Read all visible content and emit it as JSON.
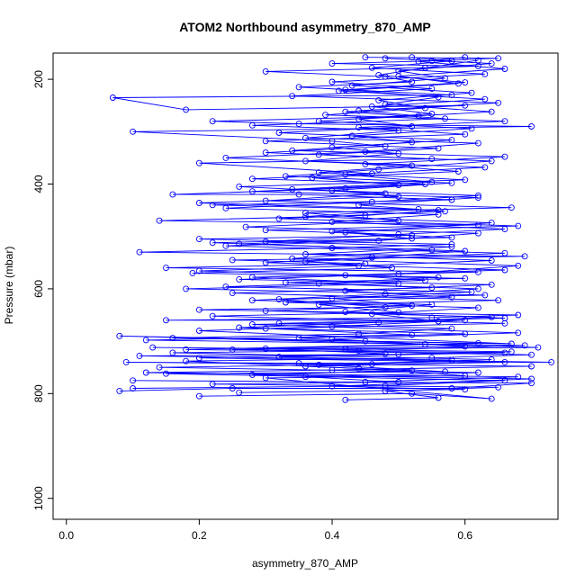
{
  "chart_data": {
    "type": "line",
    "title": "ATOM2 Northbound asymmetry_870_AMP",
    "xlabel": "asymmetry_870_AMP",
    "ylabel": "Pressure (mbar)",
    "xlim": [
      -0.02,
      0.74
    ],
    "ylim": [
      1040,
      150
    ],
    "y_reversed": true,
    "grid": false,
    "xticks": [
      0.0,
      0.2,
      0.4,
      0.6
    ],
    "xtick_labels": [
      "0.0",
      "0.2",
      "0.4",
      "0.6"
    ],
    "yticks": [
      200,
      400,
      600,
      800,
      1000
    ],
    "ytick_labels": [
      "200",
      "400",
      "600",
      "800",
      "1000"
    ],
    "marker": "open-circle",
    "series_color": "#0000ff",
    "series": [
      {
        "points": [
          [
            0.08,
            795
          ],
          [
            0.25,
            790
          ],
          [
            0.58,
            790
          ],
          [
            0.7,
            780
          ],
          [
            0.1,
            775
          ],
          [
            0.45,
            778
          ],
          [
            0.68,
            768
          ],
          [
            0.12,
            760
          ],
          [
            0.4,
            755
          ],
          [
            0.7,
            748
          ],
          [
            0.09,
            740
          ],
          [
            0.35,
            742
          ],
          [
            0.73,
            740
          ],
          [
            0.11,
            728
          ],
          [
            0.5,
            725
          ],
          [
            0.67,
            720
          ],
          [
            0.13,
            712
          ],
          [
            0.42,
            715
          ],
          [
            0.71,
            712
          ],
          [
            0.08,
            690
          ],
          [
            0.45,
            700
          ],
          [
            0.67,
            705
          ],
          [
            0.2,
            680
          ],
          [
            0.4,
            672
          ],
          [
            0.6,
            660
          ],
          [
            0.15,
            660
          ],
          [
            0.55,
            655
          ],
          [
            0.68,
            650
          ],
          [
            0.2,
            640
          ],
          [
            0.48,
            635
          ],
          [
            0.32,
            620
          ],
          [
            0.63,
            612
          ],
          [
            0.18,
            600
          ],
          [
            0.5,
            590
          ],
          [
            0.28,
            578
          ],
          [
            0.62,
            568
          ],
          [
            0.15,
            560
          ],
          [
            0.45,
            552
          ],
          [
            0.25,
            545
          ],
          [
            0.69,
            538
          ],
          [
            0.11,
            530
          ],
          [
            0.4,
            522
          ],
          [
            0.58,
            515
          ],
          [
            0.2,
            505
          ],
          [
            0.52,
            498
          ],
          [
            0.3,
            488
          ],
          [
            0.62,
            478
          ],
          [
            0.14,
            470
          ],
          [
            0.45,
            460
          ],
          [
            0.56,
            450
          ],
          [
            0.22,
            440
          ],
          [
            0.58,
            430
          ],
          [
            0.35,
            420
          ],
          [
            0.16,
            420
          ],
          [
            0.42,
            408
          ],
          [
            0.54,
            400
          ],
          [
            0.28,
            390
          ],
          [
            0.46,
            380
          ],
          [
            0.2,
            360
          ],
          [
            0.55,
            352
          ],
          [
            0.3,
            340
          ],
          [
            0.48,
            328
          ],
          [
            0.4,
            318
          ],
          [
            0.1,
            300
          ],
          [
            0.7,
            290
          ],
          [
            0.35,
            285
          ],
          [
            0.22,
            280
          ],
          [
            0.53,
            270
          ],
          [
            0.44,
            260
          ],
          [
            0.6,
            250
          ],
          [
            0.18,
            258
          ],
          [
            0.07,
            235
          ],
          [
            0.58,
            230
          ],
          [
            0.35,
            215
          ],
          [
            0.52,
            205
          ],
          [
            0.48,
            195
          ],
          [
            0.3,
            185
          ],
          [
            0.62,
            175
          ],
          [
            0.4,
            170
          ],
          [
            0.55,
            165
          ],
          [
            0.65,
            160
          ],
          [
            0.45,
            158
          ]
        ]
      },
      {
        "points": [
          [
            0.1,
            790
          ],
          [
            0.48,
            785
          ],
          [
            0.66,
            775
          ],
          [
            0.15,
            762
          ],
          [
            0.57,
            758
          ],
          [
            0.38,
            745
          ],
          [
            0.64,
            735
          ],
          [
            0.16,
            722
          ],
          [
            0.44,
            718
          ],
          [
            0.69,
            708
          ],
          [
            0.12,
            698
          ],
          [
            0.52,
            688
          ],
          [
            0.3,
            676
          ],
          [
            0.66,
            666
          ],
          [
            0.22,
            652
          ],
          [
            0.5,
            645
          ],
          [
            0.38,
            630
          ],
          [
            0.65,
            622
          ],
          [
            0.25,
            608
          ],
          [
            0.55,
            598
          ],
          [
            0.33,
            588
          ],
          [
            0.6,
            580
          ],
          [
            0.19,
            570
          ],
          [
            0.49,
            560
          ],
          [
            0.36,
            548
          ],
          [
            0.66,
            532
          ],
          [
            0.24,
            518
          ],
          [
            0.47,
            508
          ],
          [
            0.62,
            494
          ],
          [
            0.27,
            482
          ],
          [
            0.5,
            470
          ],
          [
            0.36,
            455
          ],
          [
            0.67,
            445
          ],
          [
            0.3,
            432
          ],
          [
            0.48,
            418
          ],
          [
            0.26,
            405
          ],
          [
            0.6,
            392
          ],
          [
            0.38,
            378
          ],
          [
            0.52,
            365
          ],
          [
            0.24,
            350
          ],
          [
            0.45,
            338
          ],
          [
            0.62,
            322
          ],
          [
            0.36,
            312
          ],
          [
            0.5,
            298
          ],
          [
            0.28,
            288
          ],
          [
            0.57,
            275
          ],
          [
            0.42,
            262
          ],
          [
            0.65,
            245
          ],
          [
            0.34,
            232
          ],
          [
            0.55,
            218
          ],
          [
            0.4,
            205
          ],
          [
            0.63,
            190
          ],
          [
            0.46,
            178
          ],
          [
            0.58,
            165
          ],
          [
            0.52,
            158
          ]
        ]
      },
      {
        "points": [
          [
            0.2,
            805
          ],
          [
            0.52,
            800
          ],
          [
            0.64,
            810
          ],
          [
            0.3,
            770
          ],
          [
            0.6,
            766
          ],
          [
            0.44,
            752
          ],
          [
            0.18,
            738
          ],
          [
            0.55,
            732
          ],
          [
            0.7,
            726
          ],
          [
            0.25,
            716
          ],
          [
            0.6,
            710
          ],
          [
            0.4,
            696
          ],
          [
            0.68,
            684
          ],
          [
            0.28,
            668
          ],
          [
            0.56,
            662
          ],
          [
            0.46,
            648
          ],
          [
            0.62,
            636
          ],
          [
            0.33,
            626
          ],
          [
            0.58,
            616
          ],
          [
            0.42,
            604
          ],
          [
            0.64,
            592
          ],
          [
            0.26,
            582
          ],
          [
            0.5,
            572
          ],
          [
            0.68,
            556
          ],
          [
            0.34,
            542
          ],
          [
            0.55,
            526
          ],
          [
            0.22,
            512
          ],
          [
            0.58,
            502
          ],
          [
            0.42,
            492
          ],
          [
            0.64,
            474
          ],
          [
            0.36,
            462
          ],
          [
            0.53,
            448
          ],
          [
            0.2,
            436
          ],
          [
            0.5,
            424
          ],
          [
            0.4,
            412
          ],
          [
            0.58,
            398
          ],
          [
            0.33,
            385
          ],
          [
            0.47,
            372
          ],
          [
            0.64,
            356
          ],
          [
            0.38,
            344
          ],
          [
            0.56,
            332
          ],
          [
            0.3,
            318
          ],
          [
            0.6,
            305
          ],
          [
            0.44,
            292
          ],
          [
            0.66,
            280
          ],
          [
            0.39,
            268
          ],
          [
            0.54,
            255
          ],
          [
            0.47,
            240
          ],
          [
            0.61,
            226
          ],
          [
            0.43,
            212
          ],
          [
            0.57,
            198
          ],
          [
            0.5,
            184
          ],
          [
            0.64,
            170
          ],
          [
            0.48,
            160
          ]
        ]
      },
      {
        "points": [
          [
            0.42,
            812
          ],
          [
            0.56,
            808
          ],
          [
            0.48,
            795
          ],
          [
            0.65,
            788
          ],
          [
            0.22,
            782
          ],
          [
            0.5,
            778
          ],
          [
            0.36,
            768
          ],
          [
            0.62,
            760
          ],
          [
            0.14,
            750
          ],
          [
            0.46,
            744
          ],
          [
            0.58,
            736
          ],
          [
            0.32,
            730
          ],
          [
            0.66,
            722
          ],
          [
            0.18,
            716
          ],
          [
            0.54,
            706
          ],
          [
            0.35,
            694
          ],
          [
            0.6,
            686
          ],
          [
            0.26,
            674
          ],
          [
            0.47,
            664
          ],
          [
            0.64,
            654
          ],
          [
            0.3,
            642
          ],
          [
            0.52,
            632
          ],
          [
            0.4,
            618
          ],
          [
            0.61,
            606
          ],
          [
            0.24,
            596
          ],
          [
            0.54,
            584
          ],
          [
            0.42,
            574
          ],
          [
            0.66,
            564
          ],
          [
            0.3,
            550
          ],
          [
            0.46,
            540
          ],
          [
            0.6,
            528
          ],
          [
            0.26,
            514
          ],
          [
            0.52,
            504
          ],
          [
            0.4,
            490
          ],
          [
            0.68,
            480
          ],
          [
            0.32,
            466
          ],
          [
            0.57,
            452
          ],
          [
            0.44,
            440
          ],
          [
            0.62,
            426
          ],
          [
            0.28,
            414
          ],
          [
            0.5,
            402
          ],
          [
            0.37,
            388
          ],
          [
            0.59,
            376
          ],
          [
            0.45,
            362
          ],
          [
            0.66,
            348
          ],
          [
            0.34,
            336
          ],
          [
            0.52,
            320
          ],
          [
            0.43,
            308
          ],
          [
            0.61,
            294
          ],
          [
            0.38,
            280
          ],
          [
            0.55,
            266
          ],
          [
            0.46,
            252
          ],
          [
            0.63,
            238
          ],
          [
            0.41,
            222
          ],
          [
            0.59,
            208
          ],
          [
            0.5,
            194
          ],
          [
            0.66,
            180
          ],
          [
            0.53,
            166
          ],
          [
            0.6,
            158
          ]
        ]
      },
      {
        "points": [
          [
            0.26,
            798
          ],
          [
            0.6,
            792
          ],
          [
            0.4,
            786
          ],
          [
            0.7,
            772
          ],
          [
            0.28,
            764
          ],
          [
            0.52,
            756
          ],
          [
            0.36,
            748
          ],
          [
            0.66,
            740
          ],
          [
            0.2,
            732
          ],
          [
            0.48,
            724
          ],
          [
            0.3,
            714
          ],
          [
            0.62,
            704
          ],
          [
            0.16,
            694
          ],
          [
            0.44,
            686
          ],
          [
            0.58,
            676
          ],
          [
            0.32,
            666
          ],
          [
            0.66,
            656
          ],
          [
            0.42,
            644
          ],
          [
            0.55,
            630
          ],
          [
            0.28,
            622
          ],
          [
            0.48,
            610
          ],
          [
            0.62,
            600
          ],
          [
            0.38,
            590
          ],
          [
            0.56,
            578
          ],
          [
            0.2,
            566
          ],
          [
            0.44,
            556
          ],
          [
            0.64,
            546
          ],
          [
            0.36,
            534
          ],
          [
            0.58,
            520
          ],
          [
            0.3,
            510
          ],
          [
            0.5,
            496
          ],
          [
            0.66,
            486
          ],
          [
            0.4,
            472
          ],
          [
            0.56,
            458
          ],
          [
            0.24,
            446
          ],
          [
            0.46,
            434
          ],
          [
            0.62,
            422
          ],
          [
            0.34,
            410
          ],
          [
            0.55,
            396
          ],
          [
            0.42,
            382
          ],
          [
            0.63,
            368
          ],
          [
            0.36,
            356
          ],
          [
            0.5,
            342
          ],
          [
            0.4,
            330
          ],
          [
            0.58,
            316
          ],
          [
            0.32,
            302
          ],
          [
            0.52,
            290
          ],
          [
            0.44,
            276
          ],
          [
            0.64,
            262
          ],
          [
            0.48,
            248
          ],
          [
            0.56,
            234
          ],
          [
            0.42,
            220
          ],
          [
            0.6,
            206
          ],
          [
            0.47,
            192
          ],
          [
            0.54,
            178
          ],
          [
            0.62,
            164
          ]
        ]
      }
    ]
  }
}
